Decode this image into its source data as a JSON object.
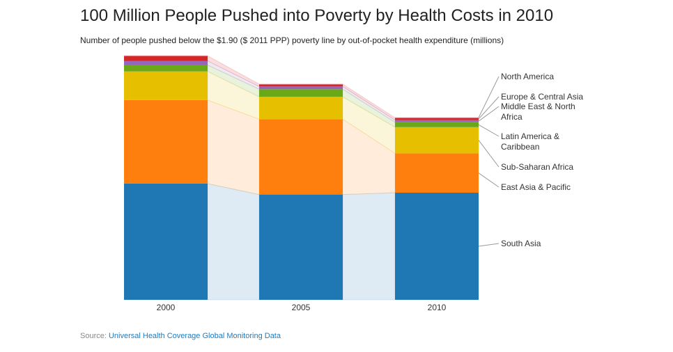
{
  "chart_data": {
    "type": "bar",
    "stacked": true,
    "title": "100 Million People Pushed into Poverty by Health Costs in 2010",
    "subtitle": "Number of people pushed below the $1.90 ($ 2011 PPP) poverty line by out-of-pocket health expenditure (millions)",
    "categories": [
      "2000",
      "2005",
      "2010"
    ],
    "xlabel": "",
    "ylabel": "",
    "ylim": [
      0,
      135
    ],
    "grid": false,
    "legend": "direct labels right",
    "series": [
      {
        "name": "South Asia",
        "color": "#1f77b4",
        "values": [
          64,
          58,
          59
        ]
      },
      {
        "name": "East Asia & Pacific",
        "color": "#ff7f0e",
        "values": [
          46,
          41.5,
          21.7
        ]
      },
      {
        "name": "Sub-Saharan Africa",
        "color": "#e6c000",
        "values": [
          15.8,
          12.3,
          14.4
        ]
      },
      {
        "name": "Latin America & Caribbean",
        "color": "#6aa817",
        "values": [
          3.5,
          4.2,
          2.7
        ]
      },
      {
        "name": "Middle East & North Africa",
        "color": "#9467bd",
        "values": [
          2.3,
          1.5,
          1.2
        ]
      },
      {
        "name": "Europe & Central Asia",
        "color": "#d62728",
        "values": [
          2.7,
          1.2,
          1.2
        ]
      },
      {
        "name": "North America",
        "color": "#f2b8c0",
        "values": [
          0.3,
          0.3,
          0.3
        ]
      }
    ]
  },
  "source": {
    "prefix": "Source: ",
    "link": "Universal Health Coverage Global Monitoring Data"
  }
}
